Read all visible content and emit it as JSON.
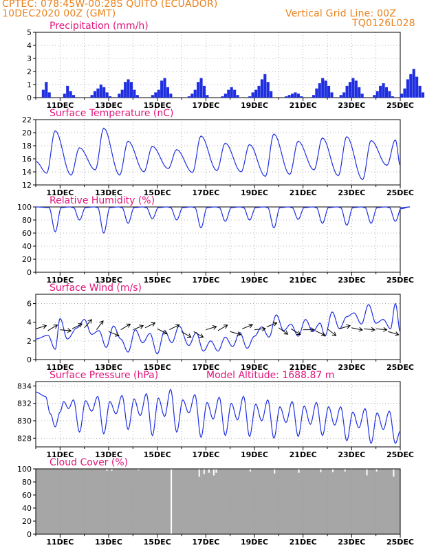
{
  "header": {
    "line1": "CPTEC:   078:45W-00:28S   QUITO (ECUADOR)",
    "line2": "10DEC2020 00Z (GMT)",
    "grid_note": "Vertical Grid Line: 00Z",
    "code": "TQ0126L028"
  },
  "colors": {
    "line": "#1f2fe0",
    "cloud": "#a6a6a6",
    "title": "#e0157c",
    "header": "#e8821e",
    "grid": "#9a9a9a"
  },
  "x_ticks": [
    "11DEC",
    "13DEC",
    "15DEC",
    "17DEC",
    "19DEC",
    "21DEC",
    "23DEC",
    "25DEC"
  ],
  "chart_data": [
    {
      "id": "precip",
      "type": "bar",
      "title": "Precipitation (mm/h)",
      "ylim": [
        0,
        5
      ],
      "yticks": [
        0,
        1,
        2,
        3,
        4,
        5
      ],
      "x_range_days": [
        10,
        25
      ],
      "values_stepdays": 0.125,
      "values": [
        0,
        0,
        0.6,
        1.2,
        0.4,
        0,
        0,
        0,
        0,
        0.3,
        0.9,
        0.5,
        0.2,
        0,
        0,
        0,
        0,
        0,
        0.2,
        0.5,
        0.7,
        1,
        0.8,
        0.4,
        0.1,
        0,
        0,
        0.3,
        0.6,
        1.2,
        1.4,
        1.2,
        0.6,
        0.2,
        0,
        0,
        0,
        0,
        0.2,
        0.4,
        0.6,
        1.3,
        1.5,
        0.8,
        0.3,
        0,
        0,
        0,
        0,
        0,
        0.1,
        0.3,
        0.6,
        1.2,
        1.5,
        0.9,
        0.2,
        0,
        0,
        0,
        0,
        0.1,
        0.3,
        0.6,
        0.8,
        0.6,
        0.2,
        0,
        0,
        0,
        0.1,
        0.4,
        0.6,
        0.9,
        1.4,
        1.8,
        1.2,
        0.5,
        0,
        0,
        0,
        0,
        0.1,
        0.2,
        0.3,
        0.4,
        0.3,
        0.1,
        0,
        0,
        0,
        0.2,
        0.7,
        1.1,
        1.5,
        1.3,
        0.9,
        0.4,
        0,
        0,
        0.2,
        0.4,
        0.9,
        1.2,
        1.5,
        1.3,
        0.8,
        0.3,
        0,
        0,
        0,
        0.2,
        0.5,
        0.9,
        1.1,
        0.8,
        0.5,
        0.1,
        0,
        0,
        0.3,
        0.7,
        1.4,
        1.8,
        2.2,
        1.6,
        0.9,
        0.4,
        0,
        0,
        0.2,
        0.4,
        0.7,
        1,
        0.9,
        0.5,
        0.2,
        0,
        0,
        0,
        0.1,
        0.4,
        0.5,
        0.6,
        0.4,
        0.1,
        0,
        0,
        0,
        0.2,
        0.4,
        0.5,
        0.7,
        0.6,
        0.3,
        0,
        0,
        0.3,
        0.6,
        1.1,
        1.8,
        1.5,
        0.9,
        0.2,
        0,
        0,
        0,
        0,
        0,
        0.1,
        0.2,
        0.1,
        0,
        0,
        0,
        0.1,
        0.4,
        0.5,
        0.7,
        0.6,
        0.3,
        0,
        0,
        0,
        0,
        0,
        0.1,
        0.2,
        0.1,
        0,
        0,
        0,
        0.1,
        0.3,
        0.7,
        1.4,
        1.1,
        0.6,
        0.2,
        0,
        0,
        0.1,
        0.3,
        0.5,
        0.8,
        0.6,
        0.3,
        0,
        0,
        0.1,
        0.3,
        0.6,
        1.1,
        1.5,
        1.9,
        1.2,
        0.5,
        0
      ]
    },
    {
      "id": "temp",
      "type": "line",
      "title": "Surface Temperature (nC)",
      "ylim": [
        12,
        22
      ],
      "yticks": [
        12,
        14,
        16,
        18,
        20,
        22
      ],
      "x_range_days": [
        10,
        25
      ],
      "diurnal_peaks": [
        {
          "day": 10.8,
          "max": 20.3,
          "min": 13.8
        },
        {
          "day": 11.8,
          "max": 17.7,
          "min": 13.5
        },
        {
          "day": 12.8,
          "max": 20.7,
          "min": 14.3
        },
        {
          "day": 13.8,
          "max": 18.7,
          "min": 13.5
        },
        {
          "day": 14.8,
          "max": 17.9,
          "min": 14.0
        },
        {
          "day": 15.8,
          "max": 17.4,
          "min": 14.5
        },
        {
          "day": 16.8,
          "max": 19.5,
          "min": 13.9
        },
        {
          "day": 17.8,
          "max": 18.4,
          "min": 14.2
        },
        {
          "day": 18.8,
          "max": 18.2,
          "min": 14.0
        },
        {
          "day": 19.8,
          "max": 19.8,
          "min": 13.3
        },
        {
          "day": 20.8,
          "max": 18.7,
          "min": 13.6
        },
        {
          "day": 21.8,
          "max": 19.2,
          "min": 14.3
        },
        {
          "day": 22.8,
          "max": 19.4,
          "min": 13.4
        },
        {
          "day": 23.8,
          "max": 18.8,
          "min": 12.8
        },
        {
          "day": 24.8,
          "max": 18.9,
          "min": 15.0
        }
      ]
    },
    {
      "id": "rh",
      "type": "line",
      "title": "Relative Humidity (%)",
      "ylim": [
        0,
        100
      ],
      "yticks": [
        0,
        20,
        40,
        60,
        80,
        100
      ],
      "x_range_days": [
        10,
        25
      ],
      "diurnal_minima": [
        {
          "day": 10.8,
          "min": 62
        },
        {
          "day": 11.8,
          "min": 80
        },
        {
          "day": 12.8,
          "min": 60
        },
        {
          "day": 13.8,
          "min": 75
        },
        {
          "day": 14.8,
          "min": 82
        },
        {
          "day": 15.8,
          "min": 80
        },
        {
          "day": 16.8,
          "min": 68
        },
        {
          "day": 17.8,
          "min": 78
        },
        {
          "day": 18.8,
          "min": 80
        },
        {
          "day": 19.8,
          "min": 68
        },
        {
          "day": 20.8,
          "min": 81
        },
        {
          "day": 21.8,
          "min": 75
        },
        {
          "day": 22.8,
          "min": 72
        },
        {
          "day": 23.8,
          "min": 75
        },
        {
          "day": 24.8,
          "min": 78
        }
      ]
    },
    {
      "id": "wind",
      "type": "line",
      "title": "Surface Wind (m/s)",
      "ylim": [
        0,
        7
      ],
      "yticks": [
        0,
        2,
        4,
        6
      ],
      "x_range_days": [
        10,
        25
      ],
      "speed": [
        {
          "day": 10.0,
          "v": 2.2
        },
        {
          "day": 10.5,
          "v": 2.6
        },
        {
          "day": 10.8,
          "v": 1.1
        },
        {
          "day": 11.0,
          "v": 4.4
        },
        {
          "day": 11.3,
          "v": 2.2
        },
        {
          "day": 11.7,
          "v": 3.4
        },
        {
          "day": 12.0,
          "v": 4.3
        },
        {
          "day": 12.3,
          "v": 2.7
        },
        {
          "day": 12.6,
          "v": 3.1
        },
        {
          "day": 12.9,
          "v": 1.3
        },
        {
          "day": 13.2,
          "v": 3.6
        },
        {
          "day": 13.5,
          "v": 2.2
        },
        {
          "day": 13.8,
          "v": 0.8
        },
        {
          "day": 14.1,
          "v": 3.2
        },
        {
          "day": 14.4,
          "v": 1.8
        },
        {
          "day": 14.7,
          "v": 2.8
        },
        {
          "day": 15.0,
          "v": 0.6
        },
        {
          "day": 15.3,
          "v": 3.1
        },
        {
          "day": 15.6,
          "v": 1.8
        },
        {
          "day": 15.9,
          "v": 3.6
        },
        {
          "day": 16.3,
          "v": 1.5
        },
        {
          "day": 16.6,
          "v": 2.9
        },
        {
          "day": 16.9,
          "v": 0.9
        },
        {
          "day": 17.2,
          "v": 2.0
        },
        {
          "day": 17.5,
          "v": 0.9
        },
        {
          "day": 17.8,
          "v": 2.4
        },
        {
          "day": 18.1,
          "v": 1.4
        },
        {
          "day": 18.4,
          "v": 2.9
        },
        {
          "day": 18.7,
          "v": 1.2
        },
        {
          "day": 19.0,
          "v": 2.5
        },
        {
          "day": 19.3,
          "v": 3.5
        },
        {
          "day": 19.6,
          "v": 2.4
        },
        {
          "day": 19.9,
          "v": 4.8
        },
        {
          "day": 20.2,
          "v": 3.1
        },
        {
          "day": 20.5,
          "v": 3.8
        },
        {
          "day": 20.8,
          "v": 2.5
        },
        {
          "day": 21.1,
          "v": 4.3
        },
        {
          "day": 21.4,
          "v": 3.0
        },
        {
          "day": 21.7,
          "v": 3.9
        },
        {
          "day": 21.9,
          "v": 2.5
        },
        {
          "day": 22.2,
          "v": 5.1
        },
        {
          "day": 22.5,
          "v": 3.3
        },
        {
          "day": 22.8,
          "v": 4.6
        },
        {
          "day": 23.1,
          "v": 5.0
        },
        {
          "day": 23.4,
          "v": 3.8
        },
        {
          "day": 23.7,
          "v": 5.9
        },
        {
          "day": 24.0,
          "v": 3.9
        },
        {
          "day": 24.3,
          "v": 4.3
        },
        {
          "day": 24.6,
          "v": 3.3
        },
        {
          "day": 24.8,
          "v": 6.0
        },
        {
          "day": 25.0,
          "v": 3.0
        }
      ],
      "arrows": [
        {
          "day": 10.0,
          "y": 3.3,
          "dx": 1,
          "dy": -0.3
        },
        {
          "day": 10.5,
          "y": 3.1,
          "dx": 1,
          "dy": -0.6
        },
        {
          "day": 11.0,
          "y": 3.2,
          "dx": 1,
          "dy": 0.1
        },
        {
          "day": 11.5,
          "y": 3.3,
          "dx": 1,
          "dy": -0.5
        },
        {
          "day": 12.0,
          "y": 3.4,
          "dx": 0.7,
          "dy": -0.8
        },
        {
          "day": 12.5,
          "y": 3.2,
          "dx": 0.6,
          "dy": -0.8
        },
        {
          "day": 13.0,
          "y": 3.0,
          "dx": 1,
          "dy": 0.4
        },
        {
          "day": 13.5,
          "y": 3.2,
          "dx": 1,
          "dy": -0.6
        },
        {
          "day": 14.0,
          "y": 3.2,
          "dx": 1,
          "dy": -0.4
        },
        {
          "day": 14.5,
          "y": 3.4,
          "dx": 1,
          "dy": -0.5
        },
        {
          "day": 15.0,
          "y": 3.3,
          "dx": 1,
          "dy": 0.5
        },
        {
          "day": 15.5,
          "y": 3.2,
          "dx": 1,
          "dy": -0.5
        },
        {
          "day": 16.0,
          "y": 3.0,
          "dx": 1,
          "dy": 0.6
        },
        {
          "day": 16.5,
          "y": 3.0,
          "dx": 1,
          "dy": 0.6
        },
        {
          "day": 17.0,
          "y": 3.2,
          "dx": 1,
          "dy": -0.3
        },
        {
          "day": 17.5,
          "y": 3.1,
          "dx": 1,
          "dy": -0.6
        },
        {
          "day": 18.0,
          "y": 3.0,
          "dx": 1,
          "dy": 0.3
        },
        {
          "day": 18.5,
          "y": 3.3,
          "dx": 1,
          "dy": -0.4
        },
        {
          "day": 19.0,
          "y": 3.2,
          "dx": 1,
          "dy": -0.1
        },
        {
          "day": 19.5,
          "y": 3.5,
          "dx": 1,
          "dy": -0.4
        },
        {
          "day": 20.0,
          "y": 3.4,
          "dx": 1,
          "dy": 0.7
        },
        {
          "day": 20.5,
          "y": 3.3,
          "dx": 1,
          "dy": 0.6
        },
        {
          "day": 21.0,
          "y": 3.2,
          "dx": 1,
          "dy": 0
        },
        {
          "day": 21.5,
          "y": 3.1,
          "dx": 1,
          "dy": 0.5
        },
        {
          "day": 22.0,
          "y": 3.3,
          "dx": 1,
          "dy": 0.8
        },
        {
          "day": 22.5,
          "y": 3.3,
          "dx": 1,
          "dy": -0.3
        },
        {
          "day": 23.0,
          "y": 3.4,
          "dx": 1,
          "dy": 0.2
        },
        {
          "day": 23.5,
          "y": 3.3,
          "dx": 1,
          "dy": 0.1
        },
        {
          "day": 24.0,
          "y": 3.3,
          "dx": 1,
          "dy": 0.1
        },
        {
          "day": 24.5,
          "y": 3.0,
          "dx": 1,
          "dy": 0.3
        }
      ]
    },
    {
      "id": "press",
      "type": "line",
      "title": "Surface Pressure (hPa)",
      "subtitle": "Model Altitude:  1688.87  m",
      "ylim": [
        827,
        834.5
      ],
      "yticks": [
        828,
        830,
        832,
        834
      ],
      "x_range_days": [
        10,
        25
      ],
      "semidiurnal": [
        {
          "day": 10.0,
          "v": 833.3
        },
        {
          "day": 10.4,
          "v": 832.8
        },
        {
          "day": 10.6,
          "v": 830.8
        },
        {
          "day": 10.8,
          "v": 829.3
        },
        {
          "day": 11.0,
          "v": 831.0
        },
        {
          "day": 11.15,
          "v": 832.2
        },
        {
          "day": 11.35,
          "v": 831.4
        },
        {
          "day": 11.55,
          "v": 832.4
        },
        {
          "day": 11.8,
          "v": 828.7
        },
        {
          "day": 12.05,
          "v": 832.3
        },
        {
          "day": 12.3,
          "v": 831.1
        },
        {
          "day": 12.55,
          "v": 832.8
        },
        {
          "day": 12.8,
          "v": 828.5
        },
        {
          "day": 13.05,
          "v": 832.2
        },
        {
          "day": 13.3,
          "v": 830.8
        },
        {
          "day": 13.55,
          "v": 832.9
        },
        {
          "day": 13.8,
          "v": 829.0
        },
        {
          "day": 14.05,
          "v": 832.5
        },
        {
          "day": 14.3,
          "v": 830.6
        },
        {
          "day": 14.55,
          "v": 833.1
        },
        {
          "day": 14.8,
          "v": 828.3
        },
        {
          "day": 15.05,
          "v": 832.6
        },
        {
          "day": 15.3,
          "v": 830.5
        },
        {
          "day": 15.55,
          "v": 833.6
        },
        {
          "day": 15.8,
          "v": 828.7
        },
        {
          "day": 16.05,
          "v": 832.4
        },
        {
          "day": 16.3,
          "v": 830.9
        },
        {
          "day": 16.55,
          "v": 833.0
        },
        {
          "day": 16.8,
          "v": 828.1
        },
        {
          "day": 17.05,
          "v": 832.1
        },
        {
          "day": 17.3,
          "v": 830.2
        },
        {
          "day": 17.55,
          "v": 832.7
        },
        {
          "day": 17.8,
          "v": 828.3
        },
        {
          "day": 18.05,
          "v": 832.0
        },
        {
          "day": 18.3,
          "v": 830.1
        },
        {
          "day": 18.55,
          "v": 832.8
        },
        {
          "day": 18.8,
          "v": 828.2
        },
        {
          "day": 19.05,
          "v": 831.9
        },
        {
          "day": 19.3,
          "v": 830.0
        },
        {
          "day": 19.55,
          "v": 832.4
        },
        {
          "day": 19.8,
          "v": 828.0
        },
        {
          "day": 20.05,
          "v": 831.6
        },
        {
          "day": 20.3,
          "v": 829.8
        },
        {
          "day": 20.55,
          "v": 832.2
        },
        {
          "day": 20.8,
          "v": 828.2
        },
        {
          "day": 21.05,
          "v": 831.7
        },
        {
          "day": 21.3,
          "v": 829.6
        },
        {
          "day": 21.55,
          "v": 832.1
        },
        {
          "day": 21.8,
          "v": 828.3
        },
        {
          "day": 22.05,
          "v": 831.6
        },
        {
          "day": 22.3,
          "v": 829.5
        },
        {
          "day": 22.55,
          "v": 831.6
        },
        {
          "day": 22.8,
          "v": 827.7
        },
        {
          "day": 23.05,
          "v": 831.0
        },
        {
          "day": 23.3,
          "v": 829.2
        },
        {
          "day": 23.55,
          "v": 831.4
        },
        {
          "day": 23.8,
          "v": 827.4
        },
        {
          "day": 24.05,
          "v": 830.9
        },
        {
          "day": 24.3,
          "v": 829.0
        },
        {
          "day": 24.55,
          "v": 831.1
        },
        {
          "day": 24.8,
          "v": 827.4
        },
        {
          "day": 25.0,
          "v": 828.8
        }
      ]
    },
    {
      "id": "cloud",
      "type": "area",
      "title": "Cloud Cover (%)",
      "ylim": [
        0,
        100
      ],
      "yticks": [
        0,
        20,
        40,
        60,
        80,
        100
      ],
      "x_range_days": [
        10,
        25
      ],
      "baseline": 100,
      "dips": [
        {
          "day": 12.9,
          "v": 97
        },
        {
          "day": 13.1,
          "v": 97
        },
        {
          "day": 14.2,
          "v": 98
        },
        {
          "day": 15.55,
          "v": 0
        },
        {
          "day": 16.7,
          "v": 88
        },
        {
          "day": 16.9,
          "v": 92
        },
        {
          "day": 17.1,
          "v": 94
        },
        {
          "day": 17.3,
          "v": 90
        },
        {
          "day": 17.4,
          "v": 94
        },
        {
          "day": 18.8,
          "v": 96
        },
        {
          "day": 19.8,
          "v": 93
        },
        {
          "day": 20.8,
          "v": 94
        },
        {
          "day": 21.7,
          "v": 95
        },
        {
          "day": 22.2,
          "v": 95
        },
        {
          "day": 22.7,
          "v": 96
        },
        {
          "day": 23.6,
          "v": 90
        },
        {
          "day": 24.0,
          "v": 96
        },
        {
          "day": 24.7,
          "v": 88
        }
      ]
    }
  ]
}
